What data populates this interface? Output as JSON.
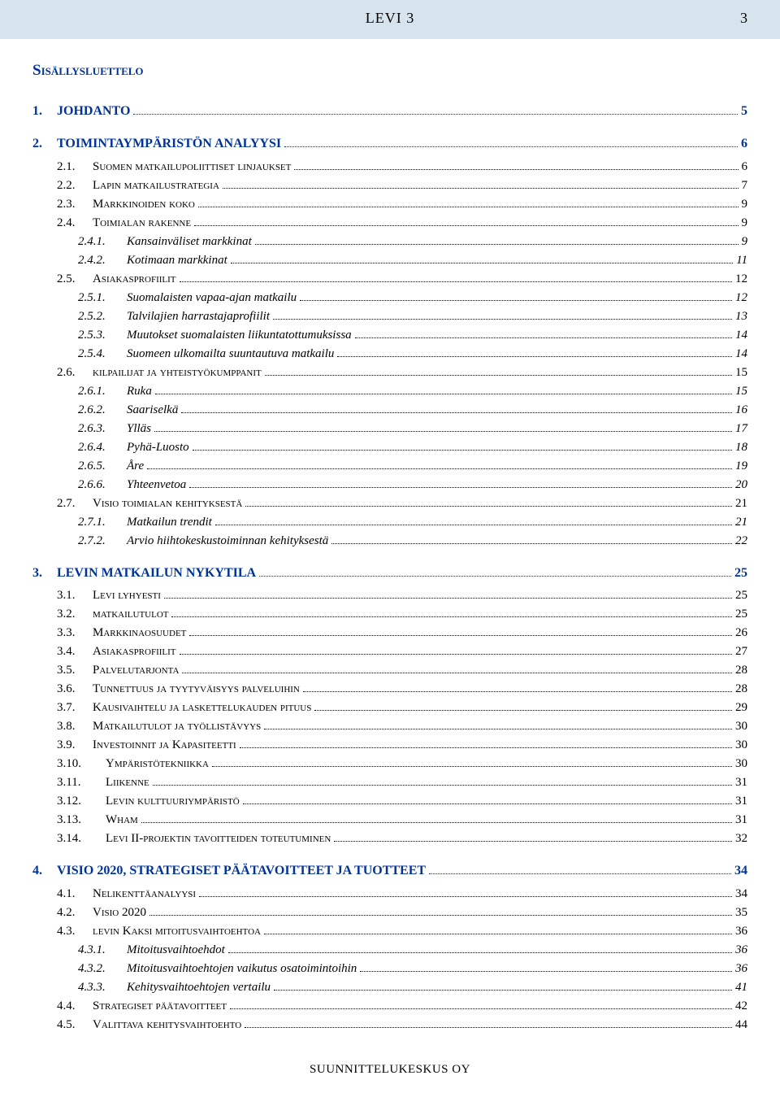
{
  "header": {
    "title": "LEVI 3",
    "page": "3"
  },
  "toc_title": "Sisällysluettelo",
  "footer": "SUUNNITTELUKESKUS OY",
  "entries": [
    {
      "level": "lvl1 first",
      "num": "1.",
      "label": "JOHDANTO",
      "page": "5"
    },
    {
      "level": "lvl1",
      "num": "2.",
      "label": "TOIMINTAYMPÄRISTÖN ANALYYSI",
      "page": "6"
    },
    {
      "level": "lvl2",
      "num": "2.1.",
      "label": "Suomen matkailupoliittiset linjaukset",
      "page": "6"
    },
    {
      "level": "lvl2",
      "num": "2.2.",
      "label": "Lapin matkailustrategia",
      "page": "7"
    },
    {
      "level": "lvl2",
      "num": "2.3.",
      "label": "Markkinoiden koko",
      "page": "9"
    },
    {
      "level": "lvl2",
      "num": "2.4.",
      "label": "Toimialan rakenne",
      "page": "9"
    },
    {
      "level": "lvl3",
      "num": "2.4.1.",
      "label": "Kansainväliset markkinat",
      "page": "9"
    },
    {
      "level": "lvl3",
      "num": "2.4.2.",
      "label": "Kotimaan markkinat",
      "page": "11"
    },
    {
      "level": "lvl2",
      "num": "2.5.",
      "label": "Asiakasprofiilit",
      "page": "12"
    },
    {
      "level": "lvl3",
      "num": "2.5.1.",
      "label": "Suomalaisten vapaa-ajan matkailu",
      "page": "12"
    },
    {
      "level": "lvl3",
      "num": "2.5.2.",
      "label": "Talvilajien harrastajaprofiilit",
      "page": "13"
    },
    {
      "level": "lvl3",
      "num": "2.5.3.",
      "label": "Muutokset suomalaisten liikuntatottumuksissa",
      "page": "14"
    },
    {
      "level": "lvl3",
      "num": "2.5.4.",
      "label": "Suomeen ulkomailta suuntautuva matkailu",
      "page": "14"
    },
    {
      "level": "lvl2",
      "num": "2.6.",
      "label": "kilpailijat ja yhteistyökumppanit",
      "page": "15"
    },
    {
      "level": "lvl3",
      "num": "2.6.1.",
      "label": "Ruka",
      "page": "15"
    },
    {
      "level": "lvl3",
      "num": "2.6.2.",
      "label": "Saariselkä",
      "page": "16"
    },
    {
      "level": "lvl3",
      "num": "2.6.3.",
      "label": "Ylläs",
      "page": "17"
    },
    {
      "level": "lvl3",
      "num": "2.6.4.",
      "label": "Pyhä-Luosto",
      "page": "18"
    },
    {
      "level": "lvl3",
      "num": "2.6.5.",
      "label": "Åre",
      "page": "19"
    },
    {
      "level": "lvl3",
      "num": "2.6.6.",
      "label": "Yhteenvetoa",
      "page": "20"
    },
    {
      "level": "lvl2",
      "num": "2.7.",
      "label": "Visio toimialan kehityksestä",
      "page": "21"
    },
    {
      "level": "lvl3",
      "num": "2.7.1.",
      "label": "Matkailun trendit",
      "page": "21"
    },
    {
      "level": "lvl3",
      "num": "2.7.2.",
      "label": "Arvio hiihtokeskustoiminnan kehityksestä",
      "page": "22"
    },
    {
      "level": "lvl1",
      "num": "3.",
      "label": "LEVIN MATKAILUN NYKYTILA",
      "page": "25"
    },
    {
      "level": "lvl2",
      "num": "3.1.",
      "label": "Levi lyhyesti",
      "page": "25"
    },
    {
      "level": "lvl2",
      "num": "3.2.",
      "label": "matkailutulot",
      "page": "25"
    },
    {
      "level": "lvl2",
      "num": "3.3.",
      "label": "Markkinaosuudet",
      "page": "26"
    },
    {
      "level": "lvl2",
      "num": "3.4.",
      "label": "Asiakasprofiilit",
      "page": "27"
    },
    {
      "level": "lvl2",
      "num": "3.5.",
      "label": "Palvelutarjonta",
      "page": "28"
    },
    {
      "level": "lvl2",
      "num": "3.6.",
      "label": "Tunnettuus ja tyytyväisyys palveluihin",
      "page": "28"
    },
    {
      "level": "lvl2",
      "num": "3.7.",
      "label": "Kausivaihtelu ja laskettelukauden pituus",
      "page": "29"
    },
    {
      "level": "lvl2",
      "num": "3.8.",
      "label": "Matkailutulot ja työllistävyys",
      "page": "30"
    },
    {
      "level": "lvl2",
      "num": "3.9.",
      "label": "Investoinnit ja Kapasiteetti",
      "page": "30"
    },
    {
      "level": "lvl2w",
      "num": "3.10.",
      "label": "Ympäristötekniikka",
      "page": "30"
    },
    {
      "level": "lvl2w",
      "num": "3.11.",
      "label": "Liikenne",
      "page": "31"
    },
    {
      "level": "lvl2w",
      "num": "3.12.",
      "label": "Levin kulttuuriympäristö",
      "page": "31"
    },
    {
      "level": "lvl2w",
      "num": "3.13.",
      "label": "Wham",
      "page": "31"
    },
    {
      "level": "lvl2w",
      "num": "3.14.",
      "label": "Levi II-projektin tavoitteiden toteutuminen",
      "page": "32"
    },
    {
      "level": "lvl1",
      "num": "4.",
      "label": "VISIO 2020, STRATEGISET PÄÄTAVOITTEET JA TUOTTEET",
      "page": "34"
    },
    {
      "level": "lvl2",
      "num": "4.1.",
      "label": "Nelikenttäanalyysi",
      "page": "34"
    },
    {
      "level": "lvl2",
      "num": "4.2.",
      "label": "Visio 2020",
      "page": "35"
    },
    {
      "level": "lvl2",
      "num": "4.3.",
      "label": "levin Kaksi mitoitusvaihtoehtoa",
      "page": "36"
    },
    {
      "level": "lvl3",
      "num": "4.3.1.",
      "label": "Mitoitusvaihtoehdot",
      "page": "36"
    },
    {
      "level": "lvl3",
      "num": "4.3.2.",
      "label": "Mitoitusvaihtoehtojen vaikutus osatoimintoihin",
      "page": "36"
    },
    {
      "level": "lvl3",
      "num": "4.3.3.",
      "label": "Kehitysvaihtoehtojen vertailu",
      "page": "41"
    },
    {
      "level": "lvl2",
      "num": "4.4.",
      "label": "Strategiset päätavoitteet",
      "page": "42"
    },
    {
      "level": "lvl2",
      "num": "4.5.",
      "label": "Valittava kehitysvaihtoehto",
      "page": "44"
    }
  ]
}
